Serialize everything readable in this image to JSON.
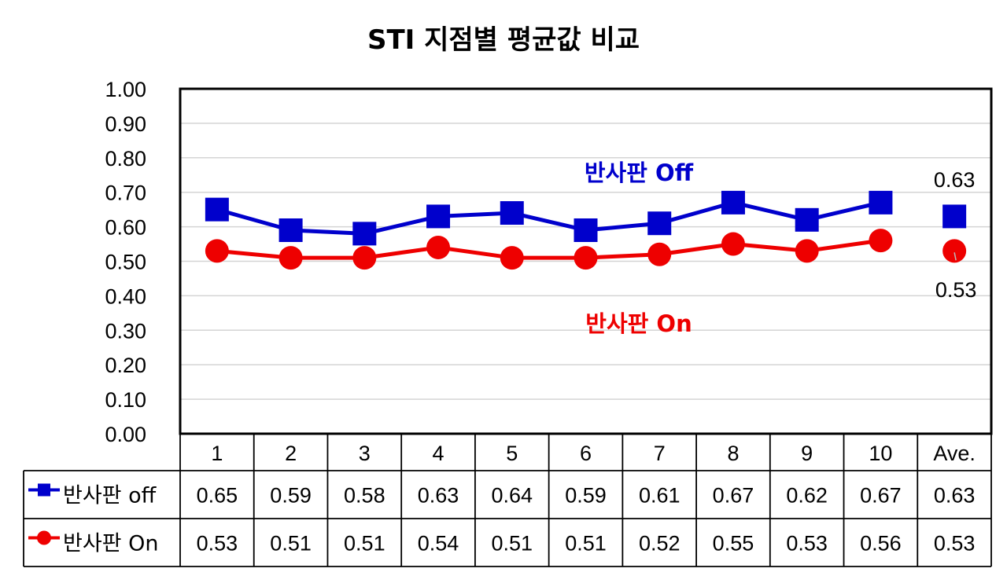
{
  "chart_data": {
    "type": "line",
    "title": "STI  지점별 평균값 비교",
    "categories": [
      "1",
      "2",
      "3",
      "4",
      "5",
      "6",
      "7",
      "8",
      "9",
      "10",
      "Ave."
    ],
    "ylim": [
      0,
      1.0
    ],
    "yticks": [
      "0.00",
      "0.10",
      "0.20",
      "0.30",
      "0.40",
      "0.50",
      "0.60",
      "0.70",
      "0.80",
      "0.90",
      "1.00"
    ],
    "grid": true,
    "legend": "data-table",
    "series": [
      {
        "name": "반사판 off",
        "inline_label": "반사판 Off",
        "color": "#0000cc",
        "marker": "square",
        "values": [
          0.65,
          0.59,
          0.58,
          0.63,
          0.64,
          0.59,
          0.61,
          0.67,
          0.62,
          0.67,
          0.63
        ],
        "labels": [
          "0.65",
          "0.59",
          "0.58",
          "0.63",
          "0.64",
          "0.59",
          "0.61",
          "0.67",
          "0.62",
          "0.67",
          "0.63"
        ],
        "ave_label": "0.63"
      },
      {
        "name": "반사판 On",
        "inline_label": "반사판 On",
        "color": "#ee0000",
        "marker": "circle",
        "values": [
          0.53,
          0.51,
          0.51,
          0.54,
          0.51,
          0.51,
          0.52,
          0.55,
          0.53,
          0.56,
          0.53
        ],
        "labels": [
          "0.53",
          "0.51",
          "0.51",
          "0.54",
          "0.51",
          "0.51",
          "0.52",
          "0.55",
          "0.53",
          "0.56",
          "0.53"
        ],
        "ave_label": "0.53"
      }
    ]
  }
}
